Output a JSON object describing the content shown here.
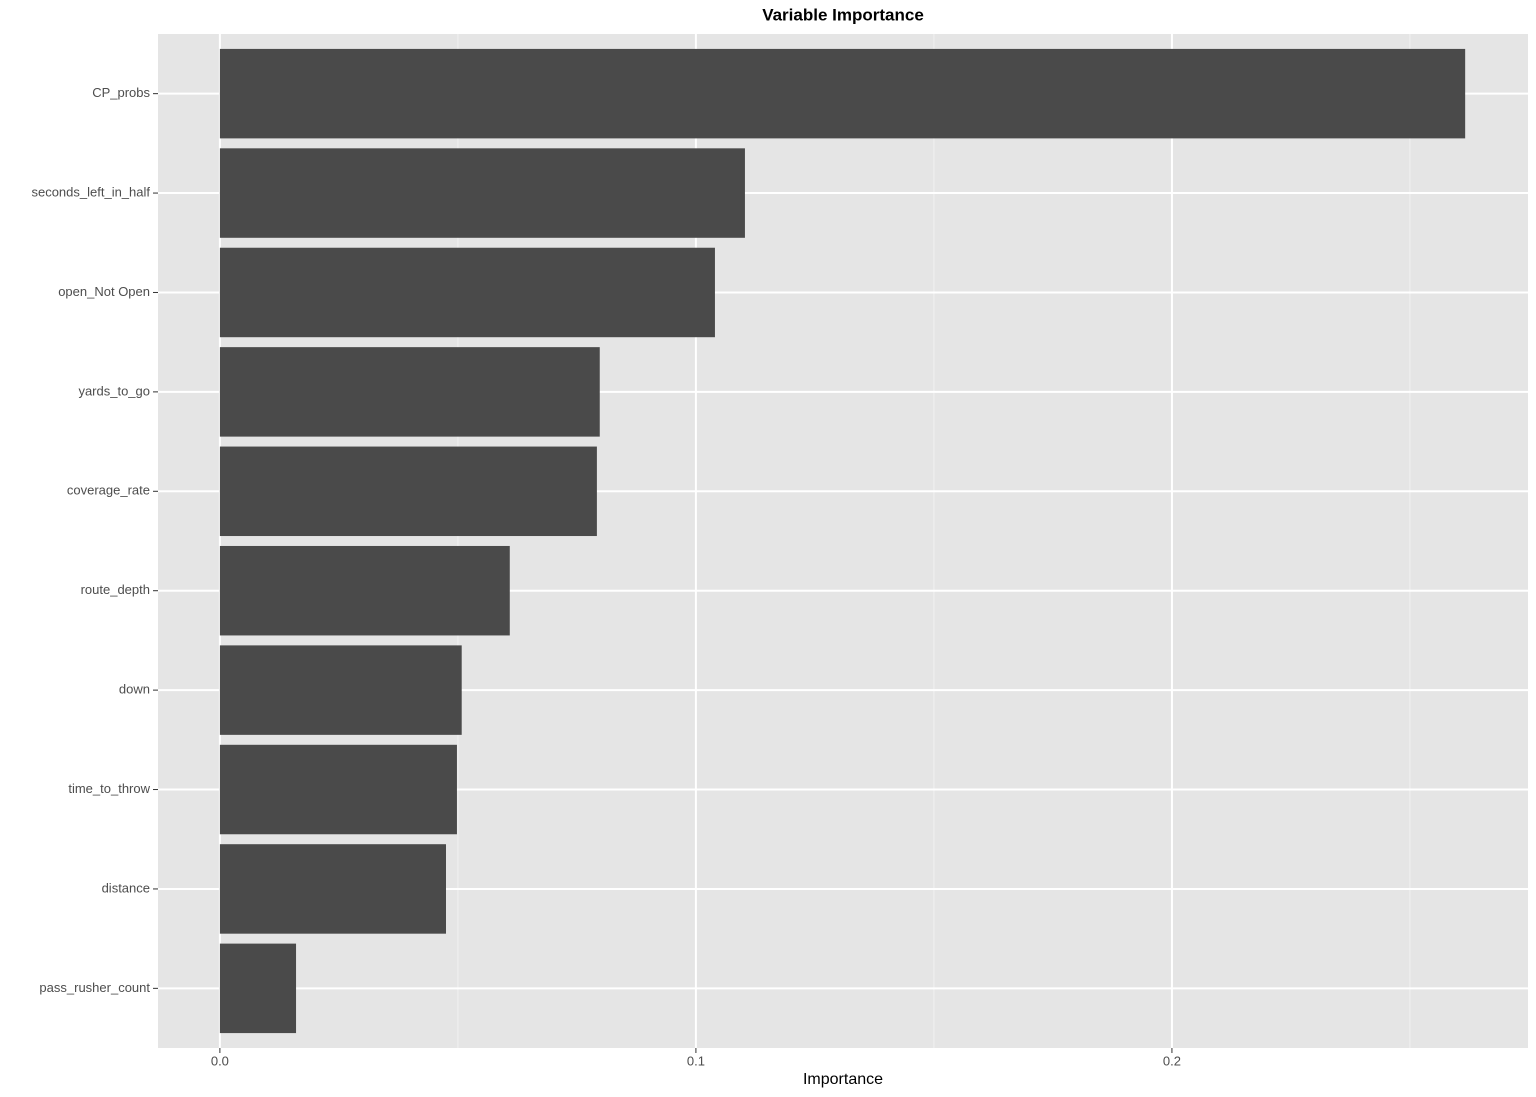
{
  "chart_data": {
    "type": "hbar",
    "title": "Variable Importance",
    "x_label": "Importance",
    "categories": [
      "CP_probs",
      "seconds_left_in_half",
      "open_Not Open",
      "yards_to_go",
      "coverage_rate",
      "route_depth",
      "down",
      "time_to_throw",
      "distance",
      "pass_rusher_count"
    ],
    "values": [
      0.2616,
      0.1103,
      0.104,
      0.0798,
      0.0792,
      0.0609,
      0.0508,
      0.0498,
      0.0475,
      0.016
    ],
    "color": "#4a4a4a",
    "xlim": [
      -0.013,
      0.2748
    ],
    "xticks": [
      {
        "value": 0,
        "label": "0.0"
      },
      0.1,
      0.2
    ],
    "minor_xticks": [
      0.05,
      0.15,
      0.25
    ],
    "grid": true
  }
}
